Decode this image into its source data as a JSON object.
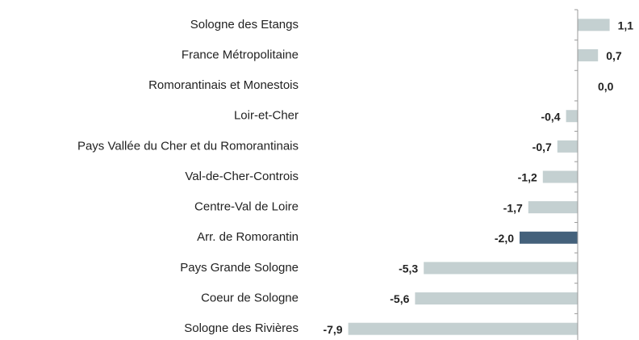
{
  "chart_data": {
    "type": "hbar",
    "categories": [
      "Sologne des Etangs",
      "France Métropolitaine",
      "Romorantinais et Monestois",
      "Loir-et-Cher",
      "Pays Vallée du Cher et du Romorantinais",
      "Val-de-Cher-Controis",
      "Centre-Val de Loire",
      "Arr. de Romorantin",
      "Pays Grande Sologne",
      "Coeur de Sologne",
      "Sologne des Rivières"
    ],
    "values": [
      1.1,
      0.7,
      0.0,
      -0.4,
      -0.7,
      -1.2,
      -1.7,
      -2.0,
      -5.3,
      -5.6,
      -7.9
    ],
    "value_labels": [
      "1,1",
      "0,7",
      "0,0",
      "-0,4",
      "-0,7",
      "-1,2",
      "-1,7",
      "-2,0",
      "-5,3",
      "-5,6",
      "-7,9"
    ],
    "colors": [
      "#c4d0d1",
      "#c4d0d1",
      "#c4d0d1",
      "#c4d0d1",
      "#c4d0d1",
      "#c4d0d1",
      "#c4d0d1",
      "#44617b",
      "#c4d0d1",
      "#c4d0d1",
      "#c4d0d1"
    ],
    "xlim": [
      -8,
      2
    ]
  }
}
